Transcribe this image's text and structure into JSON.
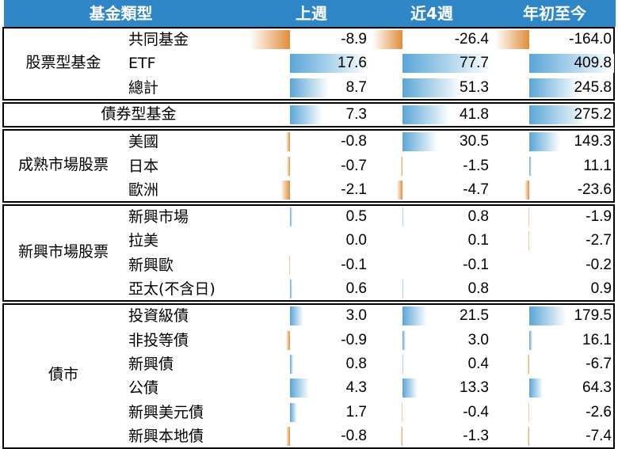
{
  "header": {
    "col_category": "基金類型",
    "col_week": "上週",
    "col_4week": "近4週",
    "col_ytd": "年初至今"
  },
  "colors": {
    "header_bg": "#2f86c6",
    "positive_bar": "#5aa6d6",
    "negative_bar": "#e08e3a"
  },
  "chart_data": {
    "type": "table",
    "columns": [
      "上週",
      "近4週",
      "年初至今"
    ],
    "groups": [
      {
        "name": "股票型基金",
        "rows": [
          {
            "label": "共同基金",
            "values": [
              -8.9,
              -26.4,
              -164.0
            ]
          },
          {
            "label": "ETF",
            "values": [
              17.6,
              77.7,
              409.8
            ]
          },
          {
            "label": "總計",
            "values": [
              8.7,
              51.3,
              245.8
            ]
          }
        ]
      },
      {
        "name": "債券型基金",
        "rows": [
          {
            "label": "",
            "values": [
              7.3,
              41.8,
              275.2
            ]
          }
        ]
      },
      {
        "name": "成熟市場股票",
        "rows": [
          {
            "label": "美國",
            "values": [
              -0.8,
              30.5,
              149.3
            ]
          },
          {
            "label": "日本",
            "values": [
              -0.7,
              -1.5,
              11.1
            ]
          },
          {
            "label": "歐洲",
            "values": [
              -2.1,
              -4.7,
              -23.6
            ]
          }
        ]
      },
      {
        "name": "新興市場股票",
        "rows": [
          {
            "label": "新興市場",
            "values": [
              0.5,
              0.8,
              -1.9
            ]
          },
          {
            "label": "拉美",
            "values": [
              0.0,
              0.1,
              -2.7
            ]
          },
          {
            "label": "新興歐",
            "values": [
              -0.1,
              -0.1,
              -0.2
            ]
          },
          {
            "label": "亞太(不含日)",
            "values": [
              0.6,
              0.8,
              0.9
            ]
          }
        ]
      },
      {
        "name": "債市",
        "rows": [
          {
            "label": "投資級債",
            "values": [
              3.0,
              21.5,
              179.5
            ]
          },
          {
            "label": "非投等債",
            "values": [
              -0.9,
              3.0,
              16.1
            ]
          },
          {
            "label": "新興債",
            "values": [
              0.8,
              0.4,
              -6.7
            ]
          },
          {
            "label": "公債",
            "values": [
              4.3,
              13.3,
              64.3
            ]
          },
          {
            "label": "新興美元債",
            "values": [
              1.7,
              -0.4,
              -2.6
            ]
          },
          {
            "label": "新興本地債",
            "values": [
              -0.8,
              -1.3,
              -7.4
            ]
          }
        ]
      }
    ]
  }
}
